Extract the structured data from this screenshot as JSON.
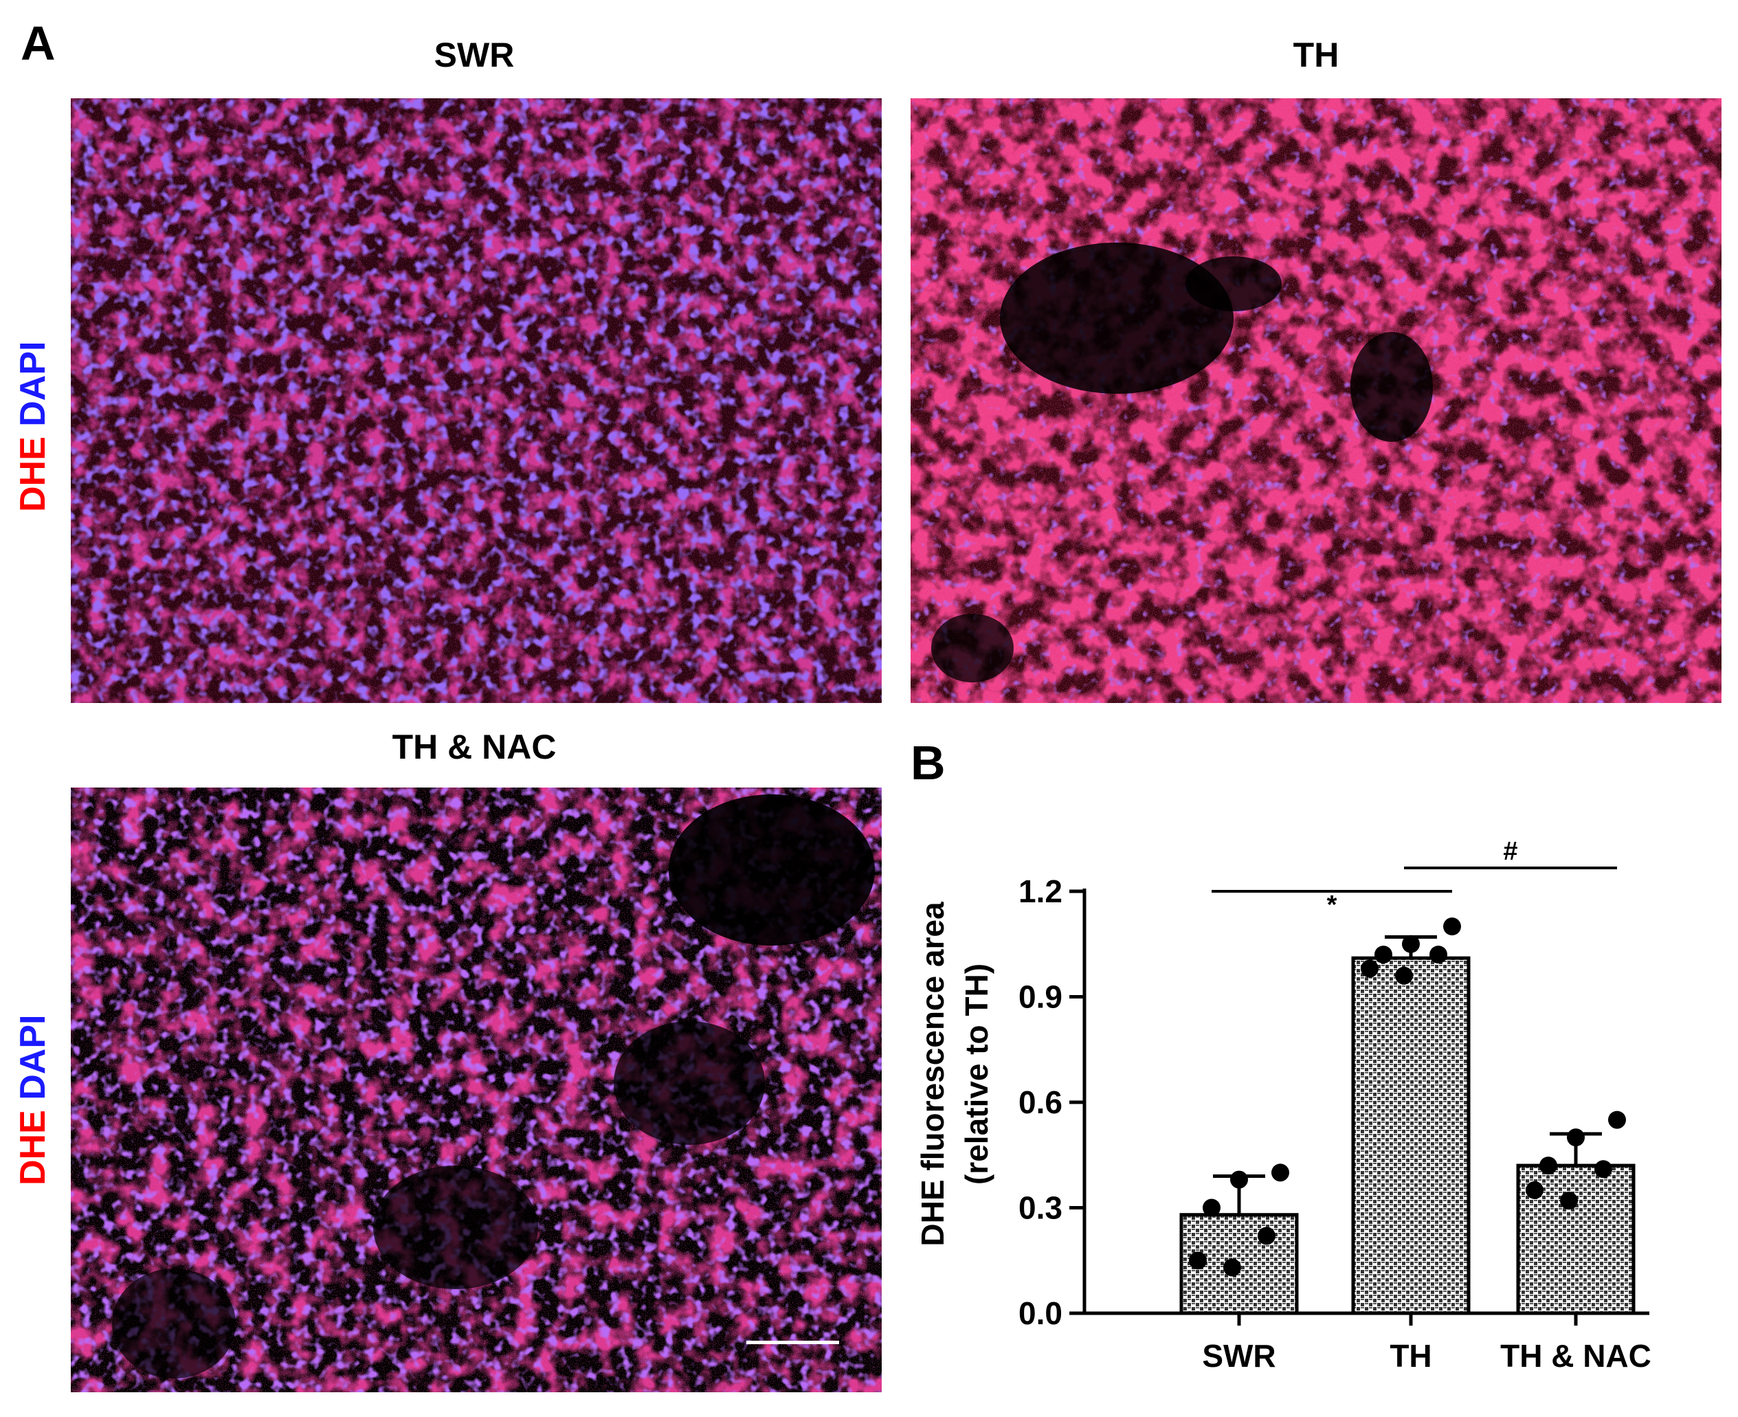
{
  "panel_a": {
    "letter": "A",
    "stain_label": {
      "dhe": "DHE",
      "dapi": "DAPI"
    },
    "images": [
      {
        "title": "SWR"
      },
      {
        "title": "TH"
      },
      {
        "title": "TH & NAC"
      }
    ]
  },
  "panel_b": {
    "letter": "B"
  },
  "chart_data": {
    "type": "bar",
    "categories": [
      "SWR",
      "TH",
      "TH & NAC"
    ],
    "values": [
      0.28,
      1.01,
      0.42
    ],
    "errors": [
      0.11,
      0.06,
      0.09
    ],
    "points": [
      [
        0.4,
        0.38,
        0.3,
        0.22,
        0.15,
        0.13
      ],
      [
        1.1,
        1.05,
        1.02,
        1.02,
        0.98,
        0.96
      ],
      [
        0.55,
        0.5,
        0.42,
        0.41,
        0.35,
        0.32
      ]
    ],
    "ylabel_line1": "DHE fluorescence area",
    "ylabel_line2": "(relative to TH)",
    "ylim": [
      0,
      1.2
    ],
    "yticks": [
      "0.0",
      "0.3",
      "0.6",
      "0.9",
      "1.2"
    ],
    "yticks_values": [
      0,
      0.3,
      0.6,
      0.9,
      1.2
    ],
    "significance": [
      {
        "from": 0,
        "to": 1,
        "label": "*"
      },
      {
        "from": 1,
        "to": 2,
        "label": "#"
      }
    ],
    "grid": false
  }
}
